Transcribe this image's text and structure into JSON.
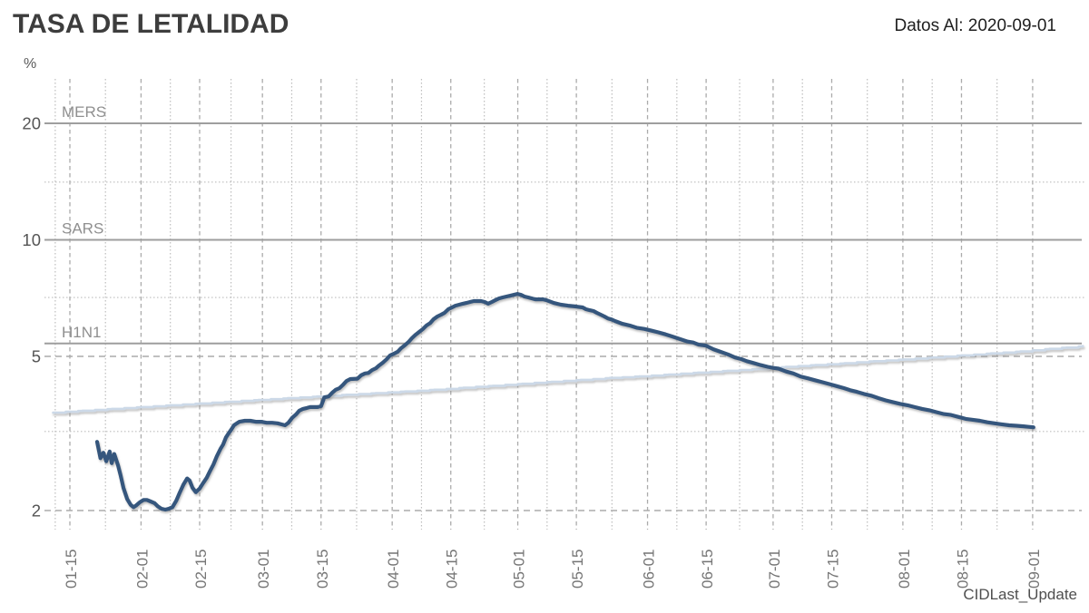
{
  "header": {
    "title": "TASA DE LETALIDAD",
    "annotation": "Datos Al: 2020-09-01"
  },
  "footer": {
    "source_label": "CIDLast_Update"
  },
  "chart_data": {
    "type": "line",
    "title": "TASA DE LETALIDAD",
    "annotation": "Datos Al: 2020-09-01",
    "footer": "CIDLast_Update",
    "legend": "none",
    "grid": "dashed-major-dotted-minor",
    "y_axis": {
      "unit": "%",
      "scale": "log",
      "tick_values": [
        2,
        5,
        10,
        20
      ],
      "minor_gridline_values": [
        3.2,
        7.1,
        14.1
      ],
      "range_approx": [
        1.9,
        26
      ]
    },
    "x_axis": {
      "ticks": [
        {
          "label": "01-15",
          "day": 15
        },
        {
          "label": "02-01",
          "day": 32
        },
        {
          "label": "02-15",
          "day": 46
        },
        {
          "label": "03-01",
          "day": 61
        },
        {
          "label": "03-15",
          "day": 75
        },
        {
          "label": "04-01",
          "day": 92
        },
        {
          "label": "04-15",
          "day": 106
        },
        {
          "label": "05-01",
          "day": 122
        },
        {
          "label": "05-15",
          "day": 136
        },
        {
          "label": "06-01",
          "day": 153
        },
        {
          "label": "06-15",
          "day": 167
        },
        {
          "label": "07-01",
          "day": 183
        },
        {
          "label": "07-15",
          "day": 197
        },
        {
          "label": "08-01",
          "day": 214
        },
        {
          "label": "08-15",
          "day": 228
        },
        {
          "label": "09-01",
          "day": 245
        }
      ],
      "domain_days": [
        11.5,
        257
      ]
    },
    "reference_lines": [
      {
        "label": "MERS",
        "value": 20,
        "color": "#9e9e9e"
      },
      {
        "label": "SARS",
        "value": 10,
        "color": "#9e9e9e"
      },
      {
        "label": "H1N1",
        "value": 5.4,
        "color": "#9e9e9e"
      }
    ],
    "colors": {
      "main_line": "#35577d",
      "secondary_line": "#ccd9e8",
      "grid_dashed": "#ababab",
      "grid_dotted": "#bdbdbd",
      "axis_text": "#555555",
      "ref_label_text": "#8f8f8f",
      "x_label_text": "#757575"
    },
    "series": [
      {
        "id": "tasa_letalidad_diaria",
        "color": "#35577d",
        "width": 4.2,
        "step": false,
        "points": [
          [
            21.5,
            3.01
          ],
          [
            22.3,
            2.73
          ],
          [
            23.0,
            2.82
          ],
          [
            23.7,
            2.68
          ],
          [
            24.5,
            2.84
          ],
          [
            25.0,
            2.65
          ],
          [
            25.6,
            2.8
          ],
          [
            26.5,
            2.62
          ],
          [
            27.1,
            2.47
          ],
          [
            27.8,
            2.29
          ],
          [
            28.7,
            2.14
          ],
          [
            29.5,
            2.07
          ],
          [
            30.2,
            2.04
          ],
          [
            30.8,
            2.06
          ],
          [
            31.7,
            2.1
          ],
          [
            32.6,
            2.13
          ],
          [
            33.4,
            2.13
          ],
          [
            34.3,
            2.11
          ],
          [
            35.2,
            2.09
          ],
          [
            36.0,
            2.05
          ],
          [
            36.9,
            2.02
          ],
          [
            37.8,
            2.01
          ],
          [
            38.6,
            2.02
          ],
          [
            39.5,
            2.04
          ],
          [
            40.4,
            2.12
          ],
          [
            41.2,
            2.22
          ],
          [
            42.1,
            2.33
          ],
          [
            43.0,
            2.42
          ],
          [
            43.6,
            2.39
          ],
          [
            44.3,
            2.29
          ],
          [
            45.1,
            2.23
          ],
          [
            46.0,
            2.28
          ],
          [
            46.9,
            2.36
          ],
          [
            47.7,
            2.43
          ],
          [
            48.4,
            2.52
          ],
          [
            49.3,
            2.63
          ],
          [
            50.1,
            2.76
          ],
          [
            51.0,
            2.89
          ],
          [
            51.6,
            2.96
          ],
          [
            52.3,
            3.09
          ],
          [
            52.9,
            3.16
          ],
          [
            53.6,
            3.24
          ],
          [
            54.2,
            3.32
          ],
          [
            54.9,
            3.36
          ],
          [
            55.5,
            3.39
          ],
          [
            56.8,
            3.41
          ],
          [
            58.1,
            3.41
          ],
          [
            59.4,
            3.39
          ],
          [
            60.7,
            3.39
          ],
          [
            62.0,
            3.37
          ],
          [
            63.3,
            3.37
          ],
          [
            64.6,
            3.36
          ],
          [
            65.5,
            3.34
          ],
          [
            66.4,
            3.32
          ],
          [
            67.2,
            3.37
          ],
          [
            68.1,
            3.47
          ],
          [
            69.0,
            3.54
          ],
          [
            69.8,
            3.62
          ],
          [
            70.7,
            3.66
          ],
          [
            71.6,
            3.68
          ],
          [
            72.4,
            3.7
          ],
          [
            74.2,
            3.7
          ],
          [
            75.0,
            3.72
          ],
          [
            75.4,
            3.82
          ],
          [
            75.8,
            3.92
          ],
          [
            76.8,
            3.94
          ],
          [
            77.7,
            4.03
          ],
          [
            78.5,
            4.1
          ],
          [
            79.4,
            4.14
          ],
          [
            80.3,
            4.23
          ],
          [
            81.1,
            4.32
          ],
          [
            82.0,
            4.37
          ],
          [
            83.7,
            4.38
          ],
          [
            84.6,
            4.47
          ],
          [
            85.5,
            4.52
          ],
          [
            86.3,
            4.53
          ],
          [
            87.2,
            4.61
          ],
          [
            88.1,
            4.66
          ],
          [
            88.9,
            4.74
          ],
          [
            89.8,
            4.82
          ],
          [
            90.7,
            4.92
          ],
          [
            91.5,
            5.03
          ],
          [
            92.4,
            5.08
          ],
          [
            93.3,
            5.14
          ],
          [
            94.1,
            5.25
          ],
          [
            95.0,
            5.34
          ],
          [
            95.9,
            5.45
          ],
          [
            96.7,
            5.57
          ],
          [
            97.6,
            5.69
          ],
          [
            98.5,
            5.79
          ],
          [
            99.3,
            5.88
          ],
          [
            100.2,
            6.01
          ],
          [
            101.1,
            6.1
          ],
          [
            101.9,
            6.24
          ],
          [
            102.8,
            6.34
          ],
          [
            103.7,
            6.41
          ],
          [
            104.5,
            6.48
          ],
          [
            105.4,
            6.62
          ],
          [
            106.3,
            6.69
          ],
          [
            107.1,
            6.76
          ],
          [
            108.0,
            6.8
          ],
          [
            108.9,
            6.84
          ],
          [
            109.7,
            6.87
          ],
          [
            110.6,
            6.91
          ],
          [
            111.5,
            6.95
          ],
          [
            113.2,
            6.95
          ],
          [
            114.1,
            6.91
          ],
          [
            114.9,
            6.84
          ],
          [
            115.8,
            6.91
          ],
          [
            116.7,
            6.99
          ],
          [
            117.5,
            7.06
          ],
          [
            118.4,
            7.1
          ],
          [
            119.3,
            7.14
          ],
          [
            120.1,
            7.17
          ],
          [
            121.0,
            7.21
          ],
          [
            121.9,
            7.25
          ],
          [
            122.8,
            7.21
          ],
          [
            123.6,
            7.14
          ],
          [
            124.5,
            7.1
          ],
          [
            125.4,
            7.06
          ],
          [
            126.2,
            7.02
          ],
          [
            128.0,
            7.02
          ],
          [
            128.8,
            6.99
          ],
          [
            130.6,
            6.87
          ],
          [
            132.3,
            6.8
          ],
          [
            134.0,
            6.76
          ],
          [
            135.7,
            6.73
          ],
          [
            137.5,
            6.69
          ],
          [
            138.3,
            6.62
          ],
          [
            139.2,
            6.58
          ],
          [
            140.1,
            6.55
          ],
          [
            140.9,
            6.48
          ],
          [
            141.8,
            6.41
          ],
          [
            142.7,
            6.34
          ],
          [
            143.5,
            6.27
          ],
          [
            144.4,
            6.23
          ],
          [
            145.2,
            6.17
          ],
          [
            147.0,
            6.07
          ],
          [
            148.7,
            6.01
          ],
          [
            150.4,
            5.93
          ],
          [
            152.2,
            5.89
          ],
          [
            153.9,
            5.83
          ],
          [
            155.6,
            5.77
          ],
          [
            157.3,
            5.7
          ],
          [
            158.7,
            5.64
          ],
          [
            160.0,
            5.58
          ],
          [
            161.3,
            5.52
          ],
          [
            162.6,
            5.46
          ],
          [
            163.9,
            5.43
          ],
          [
            165.2,
            5.36
          ],
          [
            167.0,
            5.33
          ],
          [
            168.7,
            5.22
          ],
          [
            170.4,
            5.14
          ],
          [
            172.2,
            5.06
          ],
          [
            173.9,
            4.97
          ],
          [
            175.4,
            4.92
          ],
          [
            176.7,
            4.86
          ],
          [
            178.2,
            4.81
          ],
          [
            180.0,
            4.75
          ],
          [
            181.7,
            4.7
          ],
          [
            183.0,
            4.67
          ],
          [
            184.3,
            4.65
          ],
          [
            186.1,
            4.57
          ],
          [
            187.8,
            4.52
          ],
          [
            189.5,
            4.44
          ],
          [
            191.3,
            4.39
          ],
          [
            193.0,
            4.34
          ],
          [
            194.7,
            4.29
          ],
          [
            196.5,
            4.24
          ],
          [
            198.2,
            4.19
          ],
          [
            199.9,
            4.14
          ],
          [
            201.4,
            4.09
          ],
          [
            203.0,
            4.05
          ],
          [
            204.7,
            4.0
          ],
          [
            206.4,
            3.96
          ],
          [
            208.2,
            3.9
          ],
          [
            209.9,
            3.85
          ],
          [
            211.6,
            3.81
          ],
          [
            213.4,
            3.77
          ],
          [
            215.1,
            3.74
          ],
          [
            216.8,
            3.7
          ],
          [
            218.6,
            3.66
          ],
          [
            220.3,
            3.63
          ],
          [
            222.0,
            3.59
          ],
          [
            223.8,
            3.55
          ],
          [
            225.5,
            3.53
          ],
          [
            227.2,
            3.49
          ],
          [
            229.0,
            3.45
          ],
          [
            230.7,
            3.43
          ],
          [
            232.4,
            3.41
          ],
          [
            234.2,
            3.38
          ],
          [
            235.9,
            3.36
          ],
          [
            237.6,
            3.34
          ],
          [
            239.4,
            3.32
          ],
          [
            241.1,
            3.31
          ],
          [
            242.8,
            3.3
          ],
          [
            244.0,
            3.29
          ],
          [
            245.2,
            3.28
          ]
        ]
      },
      {
        "id": "linea_referencia_ascendente",
        "color": "#ccd9e8",
        "width": 2.6,
        "step": true,
        "points": [
          [
            11,
            3.58
          ],
          [
            18,
            3.62
          ],
          [
            25,
            3.66
          ],
          [
            32,
            3.7
          ],
          [
            39,
            3.74
          ],
          [
            46,
            3.78
          ],
          [
            53,
            3.82
          ],
          [
            60,
            3.86
          ],
          [
            67,
            3.9
          ],
          [
            74,
            3.94
          ],
          [
            81,
            3.98
          ],
          [
            88,
            4.02
          ],
          [
            95,
            4.06
          ],
          [
            102,
            4.1
          ],
          [
            109,
            4.15
          ],
          [
            116,
            4.2
          ],
          [
            123,
            4.25
          ],
          [
            130,
            4.3
          ],
          [
            137,
            4.35
          ],
          [
            144,
            4.4
          ],
          [
            151,
            4.44
          ],
          [
            158,
            4.49
          ],
          [
            165,
            4.54
          ],
          [
            172,
            4.59
          ],
          [
            179,
            4.64
          ],
          [
            186,
            4.7
          ],
          [
            193,
            4.75
          ],
          [
            200,
            4.8
          ],
          [
            207,
            4.86
          ],
          [
            214,
            4.91
          ],
          [
            221,
            4.97
          ],
          [
            228,
            5.03
          ],
          [
            235,
            5.09
          ],
          [
            242,
            5.15
          ],
          [
            249,
            5.23
          ],
          [
            253,
            5.27
          ],
          [
            257,
            5.32
          ]
        ]
      }
    ]
  }
}
